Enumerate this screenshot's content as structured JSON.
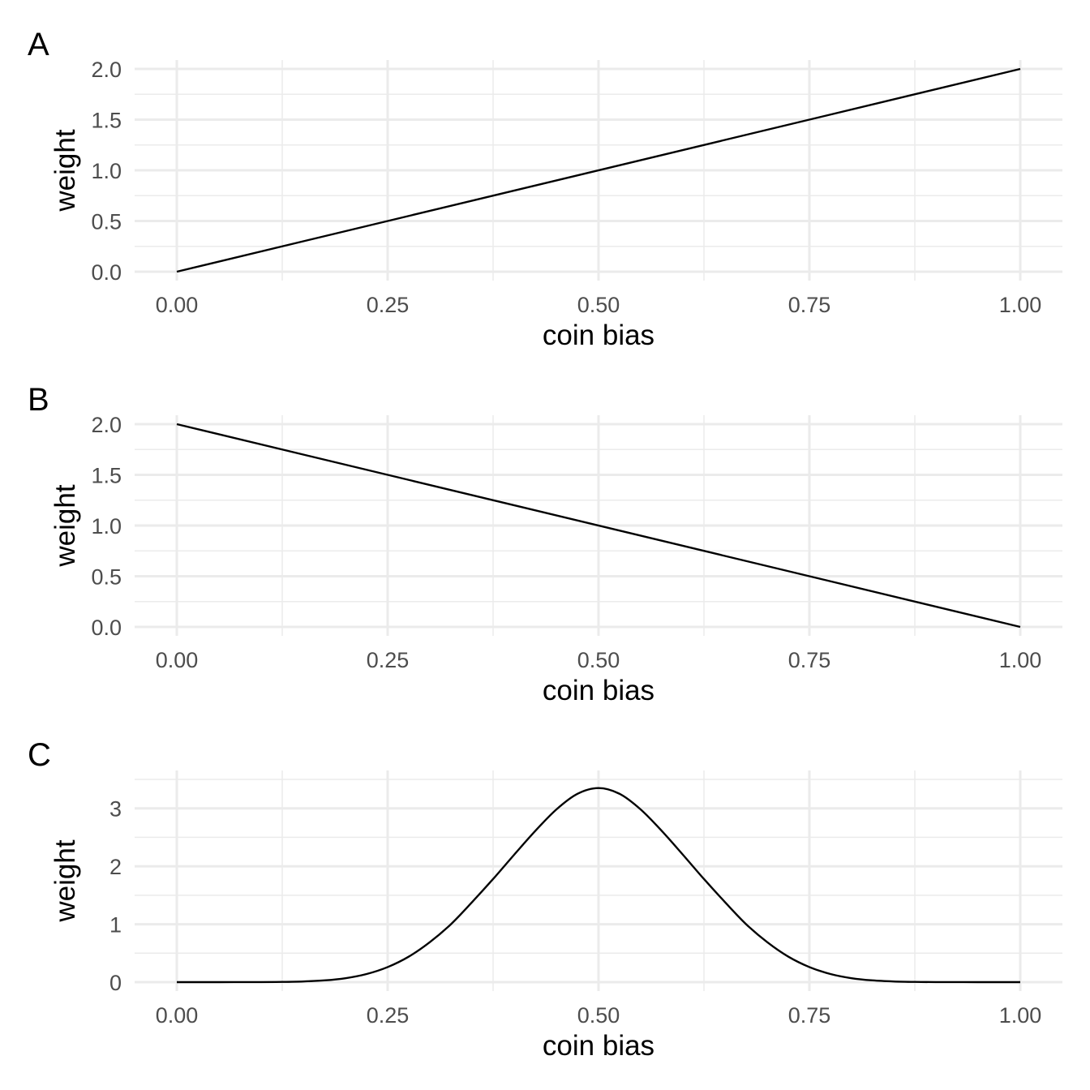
{
  "chart_data": [
    {
      "panel_label": "A",
      "type": "line",
      "xlabel": "coin bias",
      "ylabel": "weight",
      "xlim": [
        0,
        1
      ],
      "ylim": [
        0,
        2
      ],
      "x_ticks": [
        0,
        0.25,
        0.5,
        0.75,
        1
      ],
      "x_tick_labels": [
        "0.00",
        "0.25",
        "0.50",
        "0.75",
        "1.00"
      ],
      "x_minor": [
        0.125,
        0.375,
        0.625,
        0.875
      ],
      "y_ticks": [
        0,
        0.5,
        1,
        1.5,
        2
      ],
      "y_tick_labels": [
        "0.0",
        "0.5",
        "1.0",
        "1.5",
        "2.0"
      ],
      "y_minor": [
        0.25,
        0.75,
        1.25,
        1.75
      ],
      "grid": true,
      "series": [
        {
          "x": [
            0,
            1
          ],
          "y": [
            0,
            2
          ]
        }
      ]
    },
    {
      "panel_label": "B",
      "type": "line",
      "xlabel": "coin bias",
      "ylabel": "weight",
      "xlim": [
        0,
        1
      ],
      "ylim": [
        0,
        2
      ],
      "x_ticks": [
        0,
        0.25,
        0.5,
        0.75,
        1
      ],
      "x_tick_labels": [
        "0.00",
        "0.25",
        "0.50",
        "0.75",
        "1.00"
      ],
      "x_minor": [
        0.125,
        0.375,
        0.625,
        0.875
      ],
      "y_ticks": [
        0,
        0.5,
        1,
        1.5,
        2
      ],
      "y_tick_labels": [
        "0.0",
        "0.5",
        "1.0",
        "1.5",
        "2.0"
      ],
      "y_minor": [
        0.25,
        0.75,
        1.25,
        1.75
      ],
      "grid": true,
      "series": [
        {
          "x": [
            0,
            1
          ],
          "y": [
            2,
            0
          ]
        }
      ]
    },
    {
      "panel_label": "C",
      "type": "line",
      "xlabel": "coin bias",
      "ylabel": "weight",
      "xlim": [
        0,
        1
      ],
      "ylim": [
        0,
        3.5
      ],
      "x_ticks": [
        0,
        0.25,
        0.5,
        0.75,
        1
      ],
      "x_tick_labels": [
        "0.00",
        "0.25",
        "0.50",
        "0.75",
        "1.00"
      ],
      "x_minor": [
        0.125,
        0.375,
        0.625,
        0.875
      ],
      "y_ticks": [
        0,
        1,
        2,
        3
      ],
      "y_tick_labels": [
        "0",
        "1",
        "2",
        "3"
      ],
      "y_minor": [
        0.5,
        1.5,
        2.5,
        3.5
      ],
      "grid": true,
      "series": [
        {
          "x": [
            0,
            0.05,
            0.1,
            0.125,
            0.15,
            0.175,
            0.2,
            0.225,
            0.25,
            0.275,
            0.3,
            0.325,
            0.35,
            0.375,
            0.4,
            0.425,
            0.45,
            0.475,
            0.5,
            0.525,
            0.55,
            0.575,
            0.6,
            0.625,
            0.65,
            0.675,
            0.7,
            0.725,
            0.75,
            0.775,
            0.8,
            0.825,
            0.85,
            0.875,
            0.9,
            0.95,
            1
          ],
          "y": [
            0,
            0,
            0.001,
            0.004,
            0.012,
            0.03,
            0.068,
            0.14,
            0.26,
            0.44,
            0.69,
            1.0,
            1.38,
            1.78,
            2.2,
            2.61,
            2.98,
            3.25,
            3.35,
            3.25,
            2.98,
            2.61,
            2.2,
            1.78,
            1.38,
            1.0,
            0.69,
            0.44,
            0.26,
            0.14,
            0.068,
            0.03,
            0.012,
            0.004,
            0.001,
            0,
            0
          ]
        }
      ]
    }
  ]
}
